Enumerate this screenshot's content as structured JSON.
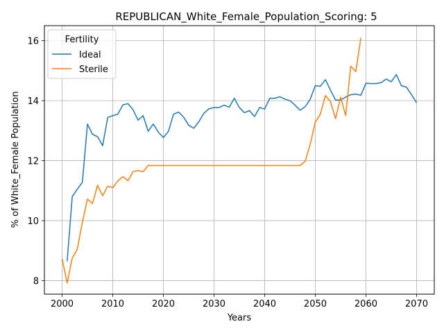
{
  "chart_data": {
    "type": "line",
    "title": "REPUBLICAN_White_Female_Population_Scoring: 5",
    "xlabel": "Years",
    "ylabel": "% of White_Female Population",
    "xlim": [
      1996.5,
      2073.5
    ],
    "ylim": [
      7.55,
      16.5
    ],
    "xticks": [
      2000,
      2010,
      2020,
      2030,
      2040,
      2050,
      2060,
      2070
    ],
    "yticks": [
      8,
      10,
      12,
      14,
      16
    ],
    "grid": true,
    "legend": {
      "title": "Fertility",
      "position": "top-left"
    },
    "series": [
      {
        "name": "Ideal",
        "color": "#1f77b4",
        "x": [
          2001,
          2002,
          2003,
          2004,
          2005,
          2006,
          2007,
          2008,
          2009,
          2010,
          2011,
          2012,
          2013,
          2014,
          2015,
          2016,
          2017,
          2018,
          2019,
          2020,
          2021,
          2022,
          2023,
          2024,
          2025,
          2026,
          2027,
          2028,
          2029,
          2030,
          2031,
          2032,
          2033,
          2034,
          2035,
          2036,
          2037,
          2038,
          2039,
          2040,
          2041,
          2042,
          2043,
          2044,
          2045,
          2046,
          2047,
          2048,
          2049,
          2050,
          2051,
          2052,
          2053,
          2054,
          2055,
          2056,
          2057,
          2058,
          2059,
          2060,
          2061,
          2062,
          2063,
          2064,
          2065,
          2066,
          2067,
          2068,
          2069,
          2070
        ],
        "values": [
          8.65,
          10.8,
          11.05,
          11.28,
          13.22,
          12.88,
          12.8,
          12.5,
          13.44,
          13.5,
          13.55,
          13.86,
          13.9,
          13.7,
          13.35,
          13.5,
          12.98,
          13.22,
          12.95,
          12.77,
          12.98,
          13.55,
          13.62,
          13.45,
          13.18,
          13.08,
          13.3,
          13.58,
          13.73,
          13.77,
          13.77,
          13.85,
          13.78,
          14.08,
          13.77,
          13.6,
          13.67,
          13.47,
          13.77,
          13.72,
          14.08,
          14.08,
          14.13,
          14.05,
          14.0,
          13.85,
          13.68,
          13.8,
          14.05,
          14.5,
          14.48,
          14.7,
          14.35,
          14.02,
          14.02,
          14.12,
          14.2,
          14.22,
          14.18,
          14.58,
          14.57,
          14.57,
          14.6,
          14.72,
          14.63,
          14.87,
          14.5,
          14.45,
          14.2,
          13.93
        ]
      },
      {
        "name": "Sterile",
        "color": "#ff7f0e",
        "x": [
          2000,
          2001,
          2002,
          2003,
          2004,
          2005,
          2006,
          2007,
          2008,
          2009,
          2010,
          2011,
          2012,
          2013,
          2014,
          2015,
          2016,
          2017,
          2018,
          2019,
          2020,
          2021,
          2022,
          2023,
          2024,
          2025,
          2026,
          2027,
          2028,
          2029,
          2030,
          2031,
          2032,
          2033,
          2034,
          2035,
          2036,
          2037,
          2038,
          2039,
          2040,
          2041,
          2042,
          2043,
          2044,
          2045,
          2046,
          2047,
          2048,
          2049,
          2050,
          2051,
          2052,
          2053,
          2054,
          2055,
          2056,
          2057,
          2058,
          2059
        ],
        "values": [
          8.73,
          7.92,
          8.75,
          9.05,
          9.95,
          10.72,
          10.57,
          11.18,
          10.83,
          11.15,
          11.1,
          11.32,
          11.47,
          11.33,
          11.63,
          11.67,
          11.63,
          11.84,
          11.84,
          11.84,
          11.84,
          11.84,
          11.84,
          11.84,
          11.84,
          11.84,
          11.84,
          11.84,
          11.84,
          11.84,
          11.84,
          11.84,
          11.84,
          11.84,
          11.84,
          11.84,
          11.84,
          11.84,
          11.84,
          11.84,
          11.84,
          11.84,
          11.84,
          11.84,
          11.84,
          11.84,
          11.84,
          11.84,
          11.98,
          12.55,
          13.28,
          13.55,
          14.17,
          13.97,
          13.4,
          14.12,
          13.5,
          15.15,
          14.97,
          16.1
        ]
      }
    ]
  }
}
